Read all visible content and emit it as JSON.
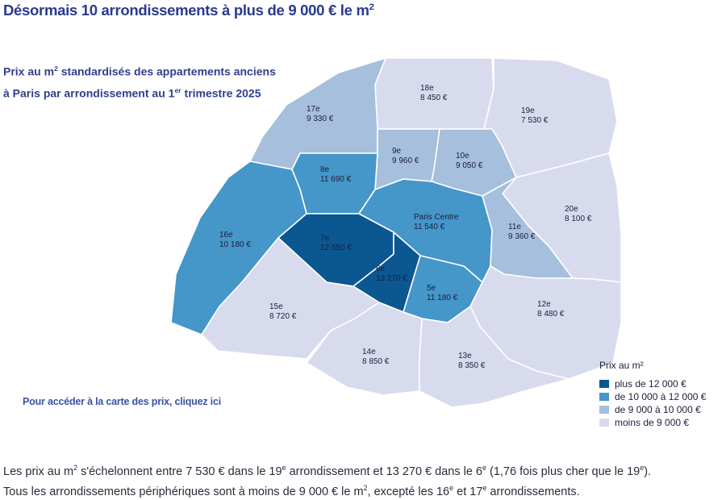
{
  "headline": {
    "main": "Désormais 10 arrondissements à plus de 9 000 € le m",
    "sup": "2"
  },
  "subtitle": {
    "line1_main": "Prix au m",
    "line1_sup": "2",
    "line1_rest": " standardisés des appartements anciens",
    "line2_main": "à Paris par arrondissement au 1",
    "line2_sup": "er",
    "line2_rest": " trimestre 2025"
  },
  "colors": {
    "plus_12000": "#0b5791",
    "10000_12000": "#4596c9",
    "9000_10000": "#a5bfdc",
    "moins_9000": "#d8dbee"
  },
  "districts": [
    {
      "id": "18",
      "name": "18e",
      "price": "8 450 €",
      "tier": "moins_9000"
    },
    {
      "id": "19",
      "name": "19e",
      "price": "7 530 €",
      "tier": "moins_9000"
    },
    {
      "id": "17",
      "name": "17e",
      "price": "9 330 €",
      "tier": "9000_10000"
    },
    {
      "id": "9",
      "name": "9e",
      "price": "9 960 €",
      "tier": "9000_10000"
    },
    {
      "id": "10",
      "name": "10e",
      "price": "9 050 €",
      "tier": "9000_10000"
    },
    {
      "id": "8",
      "name": "8e",
      "price": "11 690 €",
      "tier": "10000_12000"
    },
    {
      "id": "20",
      "name": "20e",
      "price": "8 100 €",
      "tier": "moins_9000"
    },
    {
      "id": "centre",
      "name": "Paris Centre",
      "price": "11 540 €",
      "tier": "10000_12000"
    },
    {
      "id": "11",
      "name": "11e",
      "price": "9 360 €",
      "tier": "9000_10000"
    },
    {
      "id": "16",
      "name": "16e",
      "price": "10 180 €",
      "tier": "10000_12000"
    },
    {
      "id": "7",
      "name": "7e",
      "price": "12 550 €",
      "tier": "plus_12000"
    },
    {
      "id": "6",
      "name": "6e",
      "price": "13 270 €",
      "tier": "plus_12000"
    },
    {
      "id": "5",
      "name": "5e",
      "price": "11 180 €",
      "tier": "10000_12000"
    },
    {
      "id": "12",
      "name": "12e",
      "price": "8 480 €",
      "tier": "moins_9000"
    },
    {
      "id": "15",
      "name": "15e",
      "price": "8 720 €",
      "tier": "moins_9000"
    },
    {
      "id": "14",
      "name": "14e",
      "price": "8 850 €",
      "tier": "moins_9000"
    },
    {
      "id": "13",
      "name": "13e",
      "price": "8 350 €",
      "tier": "moins_9000"
    }
  ],
  "cta": "Pour accéder à la carte des prix, cliquez ici",
  "legend": {
    "title": "Prix au m²",
    "items": [
      {
        "label": "plus de 12 000 €",
        "tier": "plus_12000"
      },
      {
        "label": "de 10 000 à 12 000 €",
        "tier": "10000_12000"
      },
      {
        "label": "de 9 000 à 10 000 €",
        "tier": "9000_10000"
      },
      {
        "label": "moins de 9 000 €",
        "tier": "moins_9000"
      }
    ]
  },
  "footer": {
    "l1_a": "Les prix au m",
    "l1_a_sup": "2",
    "l1_b": " s'échelonnent entre 7 530 € dans le 19",
    "l1_b_sup": "e",
    "l1_c": " arrondissement et 13 270 € dans le 6",
    "l1_c_sup": "e",
    "l1_d": " (1,76 fois plus cher que le 19",
    "l1_d_sup": "e",
    "l1_e": ").",
    "l2_a": "Tous les arrondissements périphériques sont à moins de 9 000 € le m",
    "l2_a_sup": "2",
    "l2_b": ", excepté les 16",
    "l2_b_sup": "e",
    "l2_c": " et 17",
    "l2_c_sup": "e",
    "l2_d": " arrondissements."
  }
}
